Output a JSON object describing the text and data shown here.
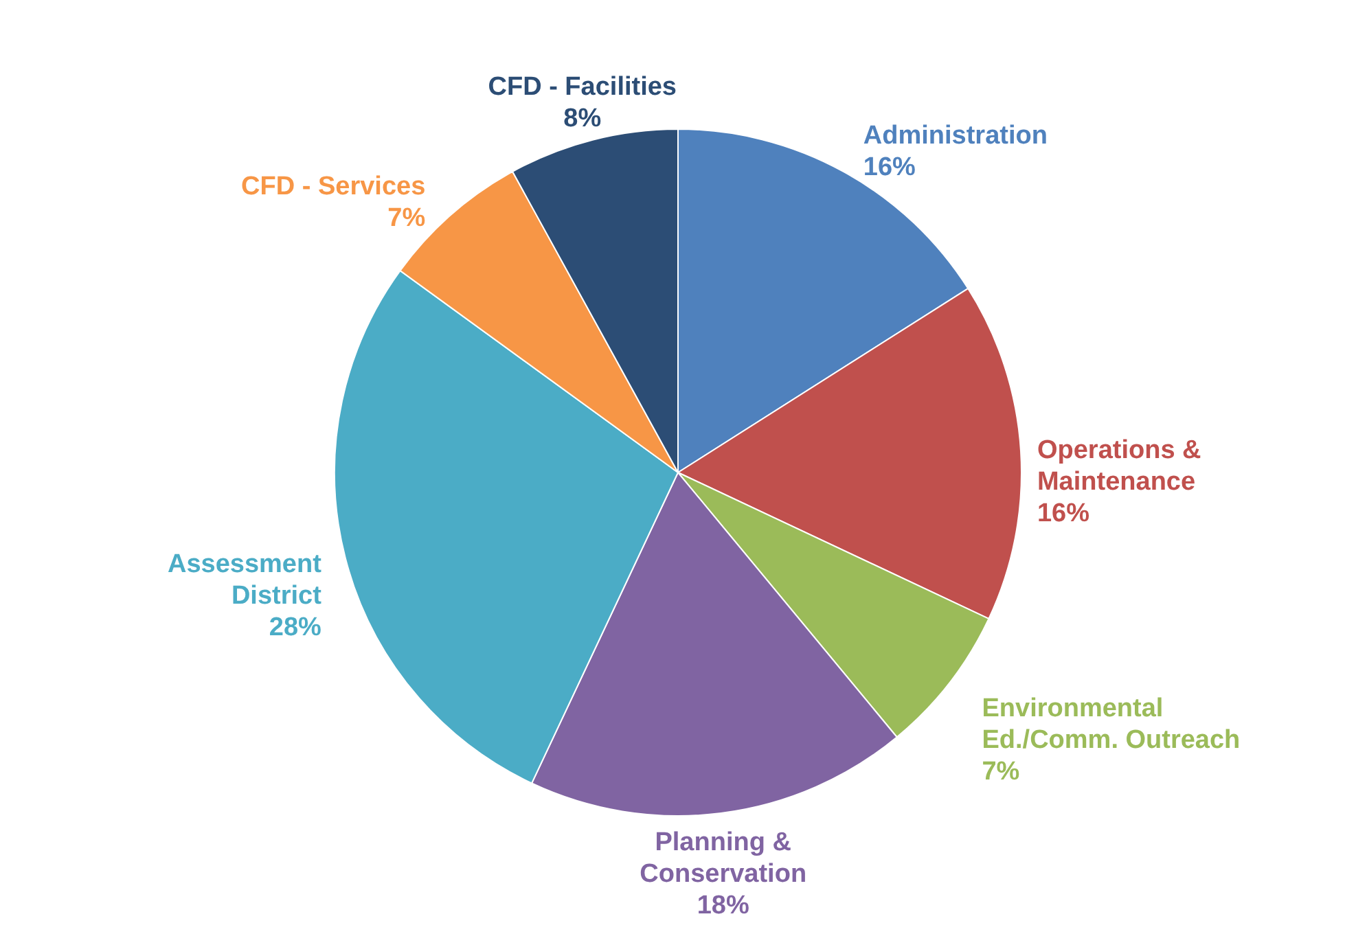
{
  "chart_data": {
    "type": "pie",
    "categories": [
      "Administration",
      "Operations & Maintenance",
      "Environmental Ed./Comm. Outreach",
      "Planning & Conservation",
      "Assessment District",
      "CFD - Services",
      "CFD - Facilities"
    ],
    "values": [
      16,
      16,
      7,
      18,
      28,
      7,
      8
    ],
    "value_labels": [
      "16%",
      "16%",
      "7%",
      "18%",
      "28%",
      "7%",
      "8%"
    ],
    "colors": [
      "#4f81bd",
      "#c0504d",
      "#9bbb59",
      "#8064a2",
      "#4bacc6",
      "#f79646",
      "#2c4d75"
    ]
  }
}
